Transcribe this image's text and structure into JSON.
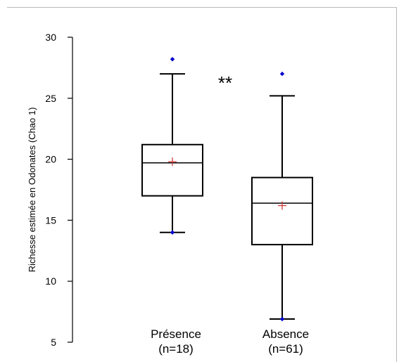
{
  "chart_data": {
    "type": "boxplot",
    "ylabel": "Richesse estimée en Odonates (Chao 1)",
    "ylim": [
      5,
      30
    ],
    "yticks": [
      5,
      10,
      15,
      20,
      25,
      30
    ],
    "groups": [
      {
        "label": "Présence",
        "n_label": "(n=18)",
        "whisker_low": 14.0,
        "q1": 17.0,
        "median": 19.7,
        "q3": 21.2,
        "whisker_high": 27.0,
        "mean": 19.8,
        "outliers": [
          28.2,
          14.0
        ]
      },
      {
        "label": "Absence",
        "n_label": "(n=61)",
        "whisker_low": 6.9,
        "q1": 13.0,
        "median": 16.4,
        "q3": 18.5,
        "whisker_high": 25.2,
        "mean": 16.2,
        "outliers": [
          27.0,
          6.9
        ]
      }
    ],
    "annotation": "**",
    "colors": {
      "box": "#000000",
      "mean_marker": "#cc3333",
      "outlier": "#0000cc"
    }
  }
}
